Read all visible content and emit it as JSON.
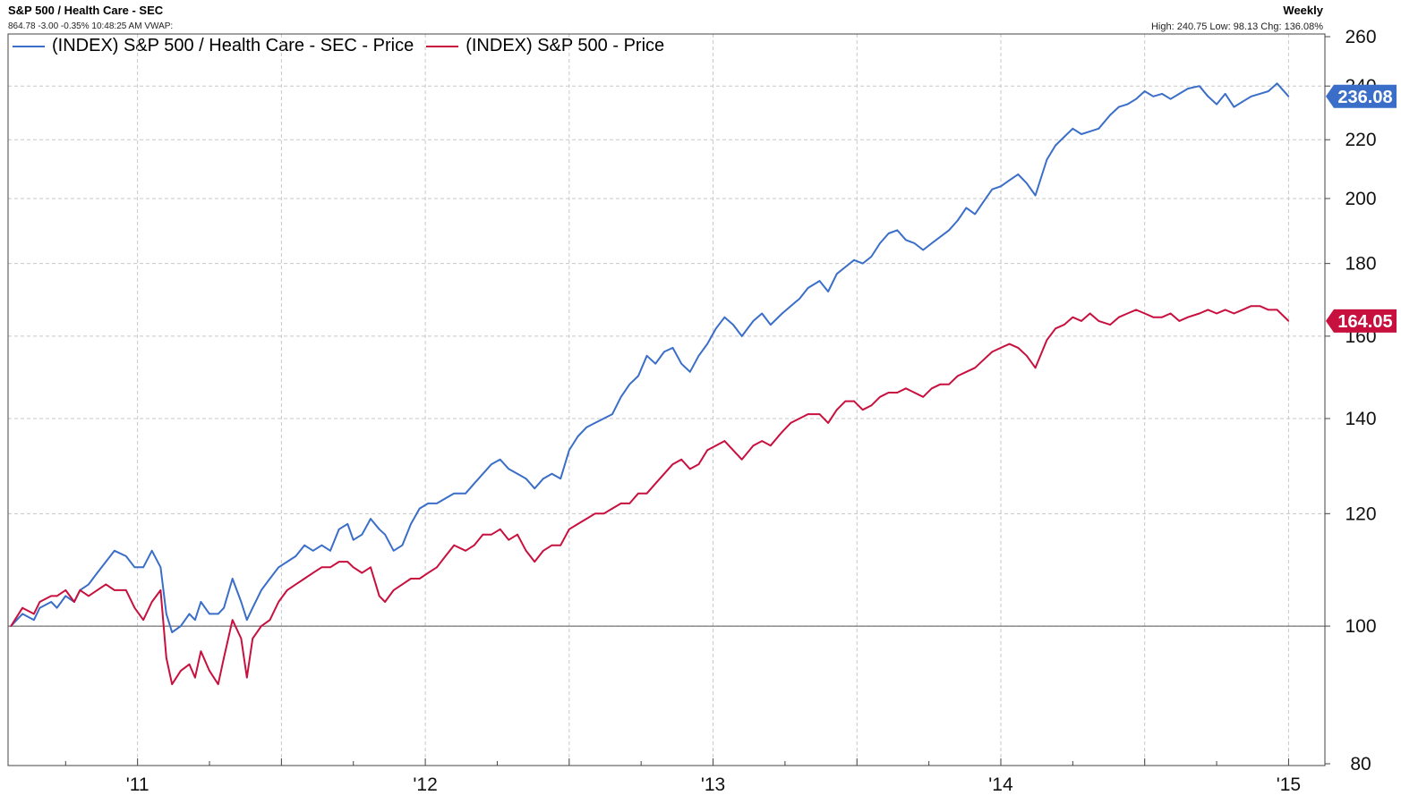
{
  "header": {
    "title": "S&P 500 / Health Care - SEC",
    "subtitle": "864.78 -3.00 -0.35% 10:48:25 AM VWAP:",
    "frequency": "Weekly",
    "hilo": "High: 240.75 Low: 98.13 Chg: 136.08%"
  },
  "colors": {
    "healthcare": "#3a6ec8",
    "sp500": "#c8103e",
    "grid": "#c8c8c8",
    "axis": "#444444"
  },
  "chart_data": {
    "type": "line",
    "y_scale": "log",
    "ylim": [
      80,
      260
    ],
    "yticks": [
      80,
      100,
      120,
      140,
      160,
      180,
      200,
      220,
      240,
      260
    ],
    "x_range": [
      2010.55,
      2015.12
    ],
    "xticks": [
      {
        "label": "'11",
        "x": 2011.0
      },
      {
        "label": "'12",
        "x": 2012.0
      },
      {
        "label": "'13",
        "x": 2013.0
      },
      {
        "label": "'14",
        "x": 2014.0
      },
      {
        "label": "'15",
        "x": 2015.0
      }
    ],
    "baseline": 100,
    "series": [
      {
        "name": "(INDEX) S&P 500 / Health Care - SEC - Price",
        "key": "healthcare",
        "last_value": "236.08",
        "points": [
          [
            2010.56,
            100
          ],
          [
            2010.6,
            102
          ],
          [
            2010.64,
            101
          ],
          [
            2010.66,
            103
          ],
          [
            2010.7,
            104
          ],
          [
            2010.72,
            103
          ],
          [
            2010.75,
            105
          ],
          [
            2010.78,
            104
          ],
          [
            2010.8,
            106
          ],
          [
            2010.83,
            107
          ],
          [
            2010.86,
            109
          ],
          [
            2010.89,
            111
          ],
          [
            2010.92,
            113
          ],
          [
            2010.96,
            112
          ],
          [
            2010.99,
            110
          ],
          [
            2011.02,
            110
          ],
          [
            2011.05,
            113
          ],
          [
            2011.08,
            110
          ],
          [
            2011.1,
            102
          ],
          [
            2011.12,
            99
          ],
          [
            2011.15,
            100
          ],
          [
            2011.18,
            102
          ],
          [
            2011.2,
            101
          ],
          [
            2011.22,
            104
          ],
          [
            2011.25,
            102
          ],
          [
            2011.28,
            102
          ],
          [
            2011.3,
            103
          ],
          [
            2011.33,
            108
          ],
          [
            2011.36,
            104
          ],
          [
            2011.38,
            101
          ],
          [
            2011.4,
            103
          ],
          [
            2011.43,
            106
          ],
          [
            2011.46,
            108
          ],
          [
            2011.49,
            110
          ],
          [
            2011.52,
            111
          ],
          [
            2011.55,
            112
          ],
          [
            2011.58,
            114
          ],
          [
            2011.61,
            113
          ],
          [
            2011.64,
            114
          ],
          [
            2011.67,
            113
          ],
          [
            2011.7,
            117
          ],
          [
            2011.73,
            118
          ],
          [
            2011.75,
            115
          ],
          [
            2011.78,
            116
          ],
          [
            2011.81,
            119
          ],
          [
            2011.84,
            117
          ],
          [
            2011.86,
            116
          ],
          [
            2011.89,
            113
          ],
          [
            2011.92,
            114
          ],
          [
            2011.95,
            118
          ],
          [
            2011.98,
            121
          ],
          [
            2012.01,
            122
          ],
          [
            2012.04,
            122
          ],
          [
            2012.07,
            123
          ],
          [
            2012.1,
            124
          ],
          [
            2012.14,
            124
          ],
          [
            2012.17,
            126
          ],
          [
            2012.2,
            128
          ],
          [
            2012.23,
            130
          ],
          [
            2012.26,
            131
          ],
          [
            2012.29,
            129
          ],
          [
            2012.32,
            128
          ],
          [
            2012.35,
            127
          ],
          [
            2012.38,
            125
          ],
          [
            2012.41,
            127
          ],
          [
            2012.44,
            128
          ],
          [
            2012.47,
            127
          ],
          [
            2012.5,
            133
          ],
          [
            2012.53,
            136
          ],
          [
            2012.56,
            138
          ],
          [
            2012.59,
            139
          ],
          [
            2012.62,
            140
          ],
          [
            2012.65,
            141
          ],
          [
            2012.68,
            145
          ],
          [
            2012.71,
            148
          ],
          [
            2012.74,
            150
          ],
          [
            2012.77,
            155
          ],
          [
            2012.8,
            153
          ],
          [
            2012.83,
            156
          ],
          [
            2012.86,
            157
          ],
          [
            2012.89,
            153
          ],
          [
            2012.92,
            151
          ],
          [
            2012.95,
            155
          ],
          [
            2012.98,
            158
          ],
          [
            2013.01,
            162
          ],
          [
            2013.04,
            165
          ],
          [
            2013.07,
            163
          ],
          [
            2013.1,
            160
          ],
          [
            2013.14,
            164
          ],
          [
            2013.17,
            166
          ],
          [
            2013.2,
            163
          ],
          [
            2013.24,
            166
          ],
          [
            2013.27,
            168
          ],
          [
            2013.3,
            170
          ],
          [
            2013.33,
            173
          ],
          [
            2013.37,
            175
          ],
          [
            2013.4,
            172
          ],
          [
            2013.43,
            177
          ],
          [
            2013.46,
            179
          ],
          [
            2013.49,
            181
          ],
          [
            2013.52,
            180
          ],
          [
            2013.55,
            182
          ],
          [
            2013.58,
            186
          ],
          [
            2013.61,
            189
          ],
          [
            2013.64,
            190
          ],
          [
            2013.67,
            187
          ],
          [
            2013.7,
            186
          ],
          [
            2013.73,
            184
          ],
          [
            2013.76,
            186
          ],
          [
            2013.79,
            188
          ],
          [
            2013.82,
            190
          ],
          [
            2013.85,
            193
          ],
          [
            2013.88,
            197
          ],
          [
            2013.91,
            195
          ],
          [
            2013.94,
            199
          ],
          [
            2013.97,
            203
          ],
          [
            2014.0,
            204
          ],
          [
            2014.03,
            206
          ],
          [
            2014.06,
            208
          ],
          [
            2014.09,
            205
          ],
          [
            2014.12,
            201
          ],
          [
            2014.16,
            213
          ],
          [
            2014.19,
            218
          ],
          [
            2014.22,
            221
          ],
          [
            2014.25,
            224
          ],
          [
            2014.28,
            222
          ],
          [
            2014.31,
            223
          ],
          [
            2014.34,
            224
          ],
          [
            2014.38,
            229
          ],
          [
            2014.41,
            232
          ],
          [
            2014.44,
            233
          ],
          [
            2014.47,
            235
          ],
          [
            2014.5,
            238
          ],
          [
            2014.53,
            236
          ],
          [
            2014.56,
            237
          ],
          [
            2014.59,
            235
          ],
          [
            2014.62,
            237
          ],
          [
            2014.65,
            239
          ],
          [
            2014.69,
            240
          ],
          [
            2014.72,
            236
          ],
          [
            2014.75,
            233
          ],
          [
            2014.78,
            237
          ],
          [
            2014.81,
            232
          ],
          [
            2014.84,
            234
          ],
          [
            2014.87,
            236
          ],
          [
            2014.9,
            237
          ],
          [
            2014.93,
            238
          ],
          [
            2014.96,
            241
          ],
          [
            2015.0,
            236
          ]
        ]
      },
      {
        "name": "(INDEX) S&P 500 - Price",
        "key": "sp500",
        "last_value": "164.05",
        "points": [
          [
            2010.56,
            100
          ],
          [
            2010.6,
            103
          ],
          [
            2010.64,
            102
          ],
          [
            2010.66,
            104
          ],
          [
            2010.7,
            105
          ],
          [
            2010.72,
            105
          ],
          [
            2010.75,
            106
          ],
          [
            2010.78,
            104
          ],
          [
            2010.8,
            106
          ],
          [
            2010.83,
            105
          ],
          [
            2010.86,
            106
          ],
          [
            2010.89,
            107
          ],
          [
            2010.92,
            106
          ],
          [
            2010.96,
            106
          ],
          [
            2010.99,
            103
          ],
          [
            2011.02,
            101
          ],
          [
            2011.05,
            104
          ],
          [
            2011.08,
            106
          ],
          [
            2011.1,
            95
          ],
          [
            2011.12,
            91
          ],
          [
            2011.15,
            93
          ],
          [
            2011.18,
            94
          ],
          [
            2011.2,
            92
          ],
          [
            2011.22,
            96
          ],
          [
            2011.25,
            93
          ],
          [
            2011.28,
            91
          ],
          [
            2011.3,
            95
          ],
          [
            2011.33,
            101
          ],
          [
            2011.36,
            98
          ],
          [
            2011.38,
            92
          ],
          [
            2011.4,
            98
          ],
          [
            2011.43,
            100
          ],
          [
            2011.46,
            101
          ],
          [
            2011.49,
            104
          ],
          [
            2011.52,
            106
          ],
          [
            2011.55,
            107
          ],
          [
            2011.58,
            108
          ],
          [
            2011.61,
            109
          ],
          [
            2011.64,
            110
          ],
          [
            2011.67,
            110
          ],
          [
            2011.7,
            111
          ],
          [
            2011.73,
            111
          ],
          [
            2011.75,
            110
          ],
          [
            2011.78,
            109
          ],
          [
            2011.81,
            110
          ],
          [
            2011.84,
            105
          ],
          [
            2011.86,
            104
          ],
          [
            2011.89,
            106
          ],
          [
            2011.92,
            107
          ],
          [
            2011.95,
            108
          ],
          [
            2011.98,
            108
          ],
          [
            2012.01,
            109
          ],
          [
            2012.04,
            110
          ],
          [
            2012.07,
            112
          ],
          [
            2012.1,
            114
          ],
          [
            2012.14,
            113
          ],
          [
            2012.17,
            114
          ],
          [
            2012.2,
            116
          ],
          [
            2012.23,
            116
          ],
          [
            2012.26,
            117
          ],
          [
            2012.29,
            115
          ],
          [
            2012.32,
            116
          ],
          [
            2012.35,
            113
          ],
          [
            2012.38,
            111
          ],
          [
            2012.41,
            113
          ],
          [
            2012.44,
            114
          ],
          [
            2012.47,
            114
          ],
          [
            2012.5,
            117
          ],
          [
            2012.53,
            118
          ],
          [
            2012.56,
            119
          ],
          [
            2012.59,
            120
          ],
          [
            2012.62,
            120
          ],
          [
            2012.65,
            121
          ],
          [
            2012.68,
            122
          ],
          [
            2012.71,
            122
          ],
          [
            2012.74,
            124
          ],
          [
            2012.77,
            124
          ],
          [
            2012.8,
            126
          ],
          [
            2012.83,
            128
          ],
          [
            2012.86,
            130
          ],
          [
            2012.89,
            131
          ],
          [
            2012.92,
            129
          ],
          [
            2012.95,
            130
          ],
          [
            2012.98,
            133
          ],
          [
            2013.01,
            134
          ],
          [
            2013.04,
            135
          ],
          [
            2013.07,
            133
          ],
          [
            2013.1,
            131
          ],
          [
            2013.14,
            134
          ],
          [
            2013.17,
            135
          ],
          [
            2013.2,
            134
          ],
          [
            2013.24,
            137
          ],
          [
            2013.27,
            139
          ],
          [
            2013.3,
            140
          ],
          [
            2013.33,
            141
          ],
          [
            2013.37,
            141
          ],
          [
            2013.4,
            139
          ],
          [
            2013.43,
            142
          ],
          [
            2013.46,
            144
          ],
          [
            2013.49,
            144
          ],
          [
            2013.52,
            142
          ],
          [
            2013.55,
            143
          ],
          [
            2013.58,
            145
          ],
          [
            2013.61,
            146
          ],
          [
            2013.64,
            146
          ],
          [
            2013.67,
            147
          ],
          [
            2013.7,
            146
          ],
          [
            2013.73,
            145
          ],
          [
            2013.76,
            147
          ],
          [
            2013.79,
            148
          ],
          [
            2013.82,
            148
          ],
          [
            2013.85,
            150
          ],
          [
            2013.88,
            151
          ],
          [
            2013.91,
            152
          ],
          [
            2013.94,
            154
          ],
          [
            2013.97,
            156
          ],
          [
            2014.0,
            157
          ],
          [
            2014.03,
            158
          ],
          [
            2014.06,
            157
          ],
          [
            2014.09,
            155
          ],
          [
            2014.12,
            152
          ],
          [
            2014.16,
            159
          ],
          [
            2014.19,
            162
          ],
          [
            2014.22,
            163
          ],
          [
            2014.25,
            165
          ],
          [
            2014.28,
            164
          ],
          [
            2014.31,
            166
          ],
          [
            2014.34,
            164
          ],
          [
            2014.38,
            163
          ],
          [
            2014.41,
            165
          ],
          [
            2014.44,
            166
          ],
          [
            2014.47,
            167
          ],
          [
            2014.5,
            166
          ],
          [
            2014.53,
            165
          ],
          [
            2014.56,
            165
          ],
          [
            2014.59,
            166
          ],
          [
            2014.62,
            164
          ],
          [
            2014.65,
            165
          ],
          [
            2014.69,
            166
          ],
          [
            2014.72,
            167
          ],
          [
            2014.75,
            166
          ],
          [
            2014.78,
            167
          ],
          [
            2014.81,
            166
          ],
          [
            2014.84,
            167
          ],
          [
            2014.87,
            168
          ],
          [
            2014.9,
            168
          ],
          [
            2014.93,
            167
          ],
          [
            2014.96,
            167
          ],
          [
            2015.0,
            164
          ]
        ]
      }
    ]
  }
}
